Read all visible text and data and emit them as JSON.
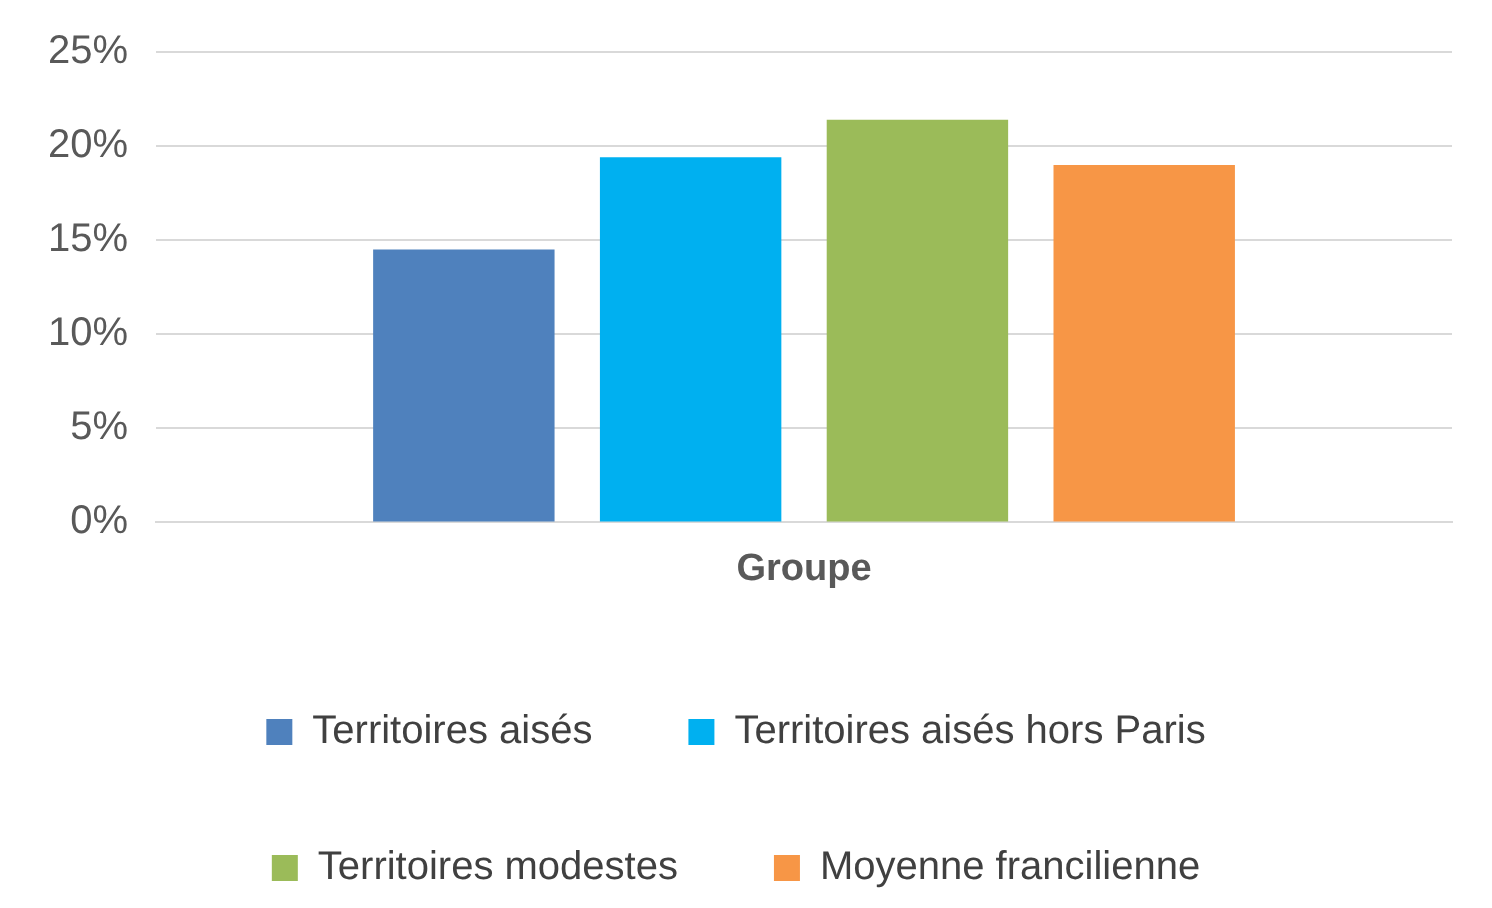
{
  "chart_data": {
    "type": "bar",
    "categories": [
      "Groupe"
    ],
    "series": [
      {
        "name": "Territoires aisés",
        "color": "#4f81bd",
        "values": [
          14.5
        ]
      },
      {
        "name": "Territoires aisés hors Paris",
        "color": "#00b0f0",
        "values": [
          19.4
        ]
      },
      {
        "name": "Territoires modestes",
        "color": "#9bbb59",
        "values": [
          21.4
        ]
      },
      {
        "name": "Moyenne francilienne",
        "color": "#f79646",
        "values": [
          19.0
        ]
      }
    ],
    "ylim": [
      0,
      25
    ],
    "yticks": [
      {
        "value": 0,
        "label": "0%"
      },
      {
        "value": 5,
        "label": "5%"
      },
      {
        "value": 10,
        "label": "10%"
      },
      {
        "value": 15,
        "label": "15%"
      },
      {
        "value": 20,
        "label": "20%"
      },
      {
        "value": 25,
        "label": "25%"
      }
    ],
    "grid": "y",
    "legend": "bottom"
  }
}
